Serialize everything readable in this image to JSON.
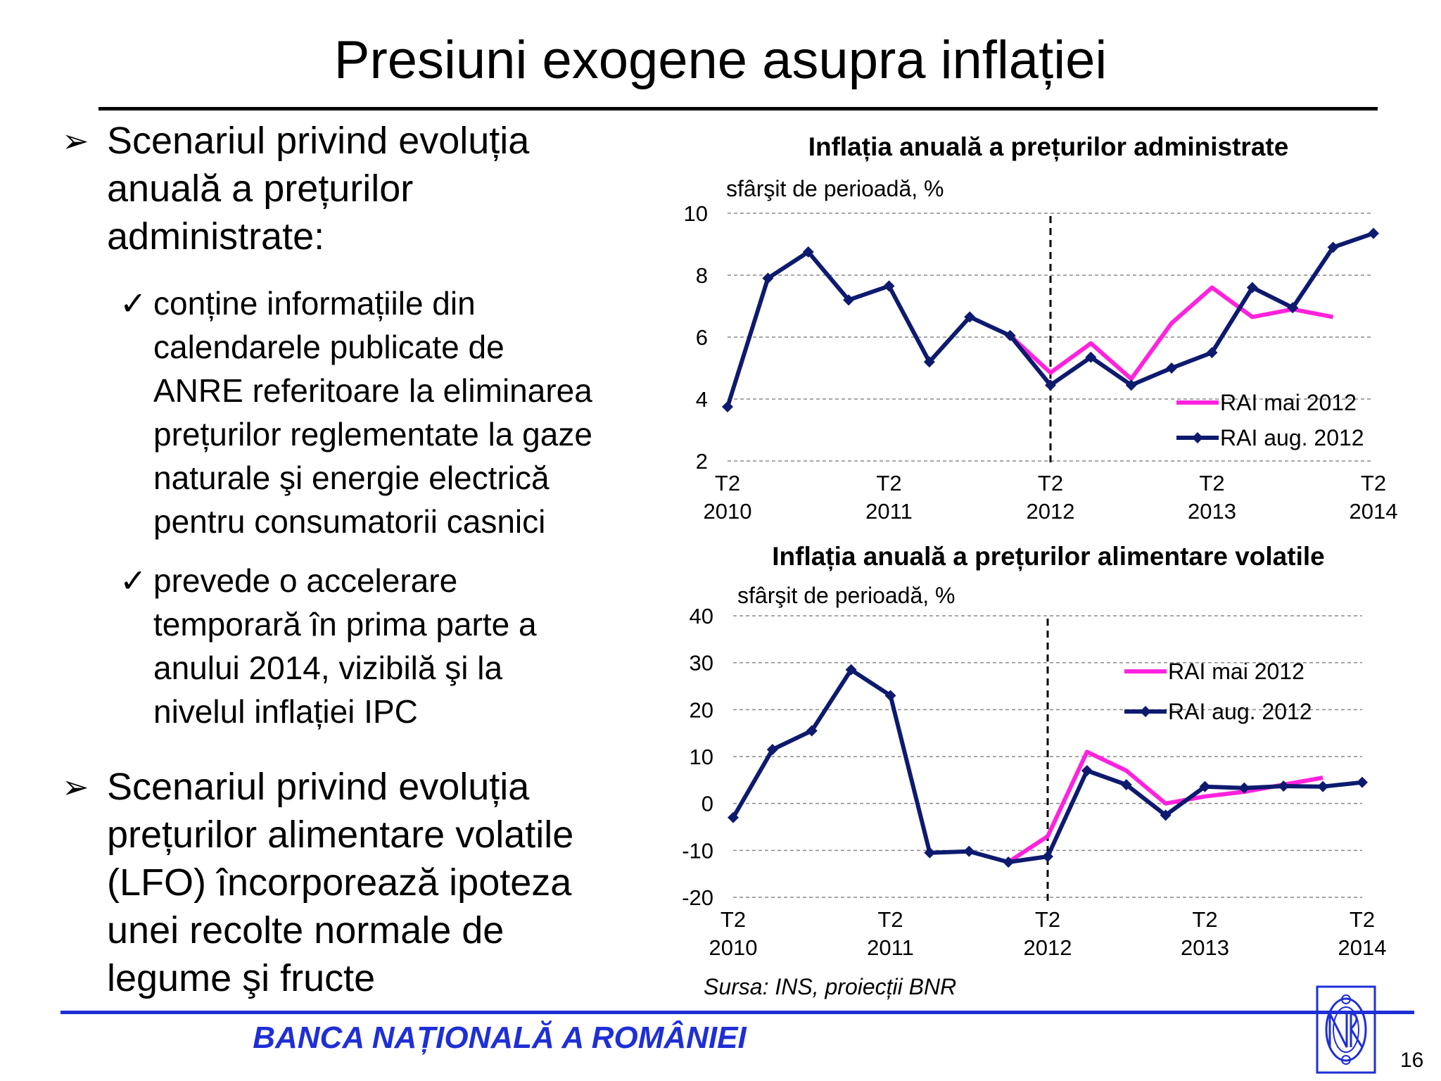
{
  "slide": {
    "title": "Presiuni exogene asupra inflației",
    "bullets": [
      {
        "lines": [
          "Scenariul privind evoluția",
          "anuală a prețurilor",
          "administrate:"
        ],
        "sub": [
          {
            "lines": [
              "conține informațiile din",
              "calendarele publicate de",
              "ANRE referitoare la eliminarea",
              "prețurilor reglementate la gaze",
              "naturale şi energie electrică",
              "pentru consumatorii casnici"
            ]
          },
          {
            "lines": [
              "prevede o accelerare",
              "temporară în prima parte a",
              "anului 2014, vizibilă şi la",
              "nivelul inflației IPC"
            ]
          }
        ]
      },
      {
        "lines": [
          "Scenariul privind evoluția",
          "prețurilor alimentare volatile",
          "(LFO) încorporează ipoteza",
          "unei recolte normale de",
          "legume şi fructe"
        ],
        "sub": []
      }
    ],
    "source": "Sursa: INS, proiecții BNR",
    "footer": "BANCA NAȚIONALĂ A ROMÂNIEI",
    "page_number": "16"
  },
  "chart_data": [
    {
      "type": "line",
      "title": "Inflația anuală a prețurilor administrate",
      "subtitle": "sfârşit de perioadă, %",
      "x": [
        0,
        1,
        2,
        3,
        4,
        5,
        6,
        7,
        8,
        9,
        10,
        11,
        12,
        13,
        14,
        15,
        16
      ],
      "x_tick_labels": [
        {
          "x": 0,
          "line1": "T2",
          "line2": "2010"
        },
        {
          "x": 4,
          "line1": "T2",
          "line2": "2011"
        },
        {
          "x": 8,
          "line1": "T2",
          "line2": "2012"
        },
        {
          "x": 12,
          "line1": "T2",
          "line2": "2013"
        },
        {
          "x": 16,
          "line1": "T2",
          "line2": "2014"
        }
      ],
      "ylim": [
        2,
        10
      ],
      "y_ticks": [
        2,
        4,
        6,
        8,
        10
      ],
      "grid": "horizontal dashed",
      "vline_x": 8,
      "legend": "bottom-right",
      "series": [
        {
          "name": "RAI mai 2012",
          "color": "#ff22dd",
          "marker": "none",
          "values": [
            null,
            null,
            null,
            null,
            null,
            null,
            null,
            6.05,
            4.85,
            5.8,
            4.65,
            6.45,
            7.6,
            6.65,
            6.9,
            6.65,
            null
          ]
        },
        {
          "name": "RAI aug. 2012",
          "color": "#0d1a6e",
          "marker": "diamond",
          "values": [
            3.75,
            7.9,
            8.75,
            7.2,
            7.65,
            5.2,
            6.65,
            6.05,
            4.45,
            5.35,
            4.45,
            5.0,
            5.5,
            7.6,
            6.95,
            8.9,
            9.35
          ]
        }
      ]
    },
    {
      "type": "line",
      "title": "Inflația anuală a prețurilor alimentare volatile",
      "subtitle": "sfârşit de perioadă, %",
      "x": [
        0,
        1,
        2,
        3,
        4,
        5,
        6,
        7,
        8,
        9,
        10,
        11,
        12,
        13,
        14,
        15,
        16
      ],
      "x_tick_labels": [
        {
          "x": 0,
          "line1": "T2",
          "line2": "2010"
        },
        {
          "x": 4,
          "line1": "T2",
          "line2": "2011"
        },
        {
          "x": 8,
          "line1": "T2",
          "line2": "2012"
        },
        {
          "x": 12,
          "line1": "T2",
          "line2": "2013"
        },
        {
          "x": 16,
          "line1": "T2",
          "line2": "2014"
        }
      ],
      "ylim": [
        -20,
        40
      ],
      "y_ticks": [
        -20,
        -10,
        0,
        10,
        20,
        30,
        40
      ],
      "grid": "horizontal dashed",
      "vline_x": 8,
      "legend": "top-right",
      "series": [
        {
          "name": "RAI mai 2012",
          "color": "#ff22dd",
          "marker": "none",
          "values": [
            null,
            null,
            null,
            null,
            null,
            null,
            null,
            -12.5,
            -7.0,
            11.0,
            7.0,
            0.0,
            1.5,
            2.5,
            4.0,
            5.5,
            null
          ]
        },
        {
          "name": "RAI aug. 2012",
          "color": "#0d1a6e",
          "marker": "diamond",
          "values": [
            -3.0,
            11.5,
            15.5,
            28.5,
            23.0,
            -10.5,
            -10.2,
            -12.5,
            -11.3,
            7.0,
            4.0,
            -2.5,
            3.6,
            3.3,
            3.7,
            3.6,
            4.5
          ]
        }
      ]
    }
  ]
}
